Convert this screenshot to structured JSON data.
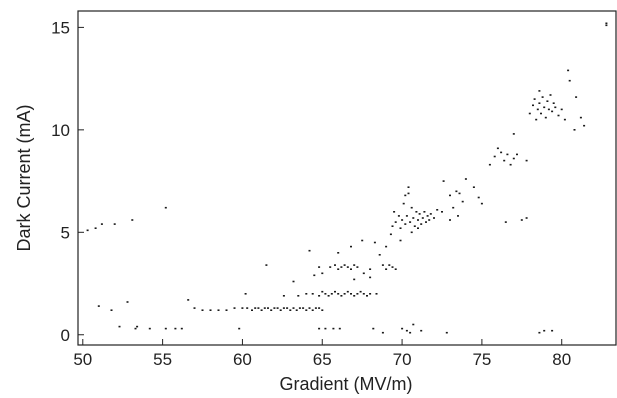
{
  "chart_data": {
    "type": "scatter",
    "xlabel": "Gradient (MV/m)",
    "ylabel": "Dark Current (mA)",
    "xlim": [
      49.7,
      83.4
    ],
    "ylim": [
      -0.5,
      15.8
    ],
    "x_ticks": [
      50,
      55,
      60,
      65,
      70,
      75,
      80
    ],
    "y_ticks": [
      0,
      5,
      10,
      15
    ],
    "grid": false,
    "legend": "none",
    "marker_color": "#1a1a1a",
    "series": [
      {
        "points": [
          [
            50.3,
            5.1
          ],
          [
            50.8,
            5.2
          ],
          [
            51.2,
            5.4
          ],
          [
            52.0,
            5.4
          ],
          [
            53.1,
            5.6
          ],
          [
            55.2,
            6.2
          ],
          [
            51.0,
            1.4
          ],
          [
            51.8,
            1.2
          ],
          [
            52.3,
            0.4
          ],
          [
            52.8,
            1.6
          ],
          [
            53.3,
            0.3
          ],
          [
            53.4,
            0.4
          ],
          [
            54.2,
            0.3
          ],
          [
            55.2,
            0.3
          ],
          [
            55.8,
            0.3
          ],
          [
            56.2,
            0.3
          ],
          [
            56.6,
            1.7
          ],
          [
            57.0,
            1.3
          ],
          [
            57.5,
            1.2
          ],
          [
            58.0,
            1.2
          ],
          [
            58.5,
            1.2
          ],
          [
            59.0,
            1.2
          ],
          [
            59.5,
            1.3
          ],
          [
            59.8,
            0.3
          ],
          [
            60.0,
            1.3
          ],
          [
            60.3,
            1.3
          ],
          [
            60.6,
            1.2
          ],
          [
            60.8,
            1.3
          ],
          [
            61.0,
            1.3
          ],
          [
            61.2,
            1.2
          ],
          [
            61.4,
            1.3
          ],
          [
            61.6,
            1.3
          ],
          [
            61.8,
            1.2
          ],
          [
            62.0,
            1.3
          ],
          [
            62.2,
            1.3
          ],
          [
            62.4,
            1.2
          ],
          [
            62.6,
            1.3
          ],
          [
            62.8,
            1.3
          ],
          [
            63.0,
            1.2
          ],
          [
            63.2,
            1.3
          ],
          [
            63.4,
            1.2
          ],
          [
            63.6,
            1.3
          ],
          [
            63.8,
            1.3
          ],
          [
            64.0,
            1.2
          ],
          [
            64.2,
            1.3
          ],
          [
            64.4,
            1.2
          ],
          [
            64.6,
            1.3
          ],
          [
            64.8,
            1.3
          ],
          [
            65.0,
            1.2
          ],
          [
            61.5,
            3.4
          ],
          [
            60.2,
            2.0
          ],
          [
            62.6,
            1.9
          ],
          [
            63.5,
            1.9
          ],
          [
            64.0,
            2.0
          ],
          [
            64.4,
            2.0
          ],
          [
            64.8,
            1.9
          ],
          [
            65.0,
            2.1
          ],
          [
            65.2,
            2.0
          ],
          [
            65.4,
            1.9
          ],
          [
            65.6,
            2.0
          ],
          [
            65.8,
            2.1
          ],
          [
            66.0,
            2.0
          ],
          [
            66.2,
            1.9
          ],
          [
            66.4,
            2.0
          ],
          [
            66.6,
            2.1
          ],
          [
            66.8,
            2.0
          ],
          [
            67.0,
            1.9
          ],
          [
            67.2,
            2.0
          ],
          [
            67.4,
            2.1
          ],
          [
            67.6,
            2.0
          ],
          [
            67.8,
            1.9
          ],
          [
            68.0,
            2.0
          ],
          [
            68.4,
            2.0
          ],
          [
            64.8,
            3.3
          ],
          [
            64.2,
            4.1
          ],
          [
            63.2,
            2.6
          ],
          [
            64.5,
            2.9
          ],
          [
            65.0,
            3.0
          ],
          [
            65.5,
            3.3
          ],
          [
            65.8,
            3.4
          ],
          [
            66.0,
            3.2
          ],
          [
            66.2,
            3.3
          ],
          [
            66.4,
            3.4
          ],
          [
            66.6,
            3.3
          ],
          [
            66.8,
            3.2
          ],
          [
            67.0,
            3.4
          ],
          [
            67.2,
            3.3
          ],
          [
            67.6,
            3.0
          ],
          [
            68.0,
            3.2
          ],
          [
            66.0,
            4.0
          ],
          [
            66.8,
            4.3
          ],
          [
            67.0,
            2.7
          ],
          [
            67.5,
            4.6
          ],
          [
            68.0,
            2.8
          ],
          [
            68.3,
            4.5
          ],
          [
            68.6,
            3.9
          ],
          [
            68.8,
            3.4
          ],
          [
            69.0,
            3.2
          ],
          [
            69.2,
            3.4
          ],
          [
            69.4,
            3.3
          ],
          [
            69.6,
            3.2
          ],
          [
            69.0,
            4.3
          ],
          [
            69.3,
            4.9
          ],
          [
            69.4,
            5.3
          ],
          [
            69.5,
            6.0
          ],
          [
            69.6,
            5.5
          ],
          [
            69.8,
            5.8
          ],
          [
            69.9,
            5.2
          ],
          [
            70.0,
            5.6
          ],
          [
            70.1,
            6.4
          ],
          [
            70.2,
            5.4
          ],
          [
            70.3,
            5.8
          ],
          [
            70.4,
            6.9
          ],
          [
            70.5,
            5.5
          ],
          [
            70.6,
            6.2
          ],
          [
            70.7,
            5.7
          ],
          [
            70.8,
            5.3
          ],
          [
            70.9,
            6.0
          ],
          [
            71.0,
            5.6
          ],
          [
            71.1,
            5.9
          ],
          [
            71.2,
            5.4
          ],
          [
            71.3,
            5.7
          ],
          [
            71.4,
            6.0
          ],
          [
            71.5,
            5.5
          ],
          [
            71.6,
            5.8
          ],
          [
            71.7,
            5.6
          ],
          [
            71.8,
            5.9
          ],
          [
            72.0,
            5.7
          ],
          [
            72.2,
            6.1
          ],
          [
            70.4,
            7.2
          ],
          [
            70.2,
            6.8
          ],
          [
            71.0,
            5.2
          ],
          [
            70.6,
            5.0
          ],
          [
            69.9,
            4.6
          ],
          [
            70.0,
            0.3
          ],
          [
            70.3,
            0.2
          ],
          [
            70.7,
            0.5
          ],
          [
            71.2,
            0.2
          ],
          [
            70.5,
            0.1
          ],
          [
            64.8,
            0.3
          ],
          [
            65.2,
            0.3
          ],
          [
            65.7,
            0.3
          ],
          [
            66.1,
            0.3
          ],
          [
            68.2,
            0.3
          ],
          [
            68.8,
            0.1
          ],
          [
            72.5,
            6.0
          ],
          [
            73.0,
            5.6
          ],
          [
            73.0,
            6.8
          ],
          [
            73.2,
            6.2
          ],
          [
            73.4,
            7.0
          ],
          [
            73.6,
            6.9
          ],
          [
            73.8,
            6.5
          ],
          [
            74.0,
            7.6
          ],
          [
            72.6,
            7.5
          ],
          [
            74.5,
            7.2
          ],
          [
            74.8,
            6.7
          ],
          [
            75.0,
            6.4
          ],
          [
            73.5,
            5.8
          ],
          [
            72.8,
            0.1
          ],
          [
            75.5,
            8.3
          ],
          [
            75.8,
            8.7
          ],
          [
            76.0,
            9.1
          ],
          [
            76.2,
            8.9
          ],
          [
            76.4,
            8.5
          ],
          [
            76.6,
            8.8
          ],
          [
            76.8,
            8.3
          ],
          [
            77.0,
            8.6
          ],
          [
            77.2,
            8.8
          ],
          [
            77.5,
            5.6
          ],
          [
            77.8,
            5.7
          ],
          [
            77.0,
            9.8
          ],
          [
            77.8,
            8.5
          ],
          [
            76.5,
            5.5
          ],
          [
            78.0,
            10.8
          ],
          [
            78.2,
            11.2
          ],
          [
            78.3,
            11.5
          ],
          [
            78.4,
            10.5
          ],
          [
            78.5,
            11.0
          ],
          [
            78.6,
            11.3
          ],
          [
            78.7,
            10.8
          ],
          [
            78.8,
            11.6
          ],
          [
            78.9,
            11.1
          ],
          [
            79.0,
            10.6
          ],
          [
            79.1,
            11.4
          ],
          [
            79.2,
            11.0
          ],
          [
            79.3,
            11.7
          ],
          [
            79.4,
            10.9
          ],
          [
            79.5,
            11.3
          ],
          [
            79.6,
            11.1
          ],
          [
            79.8,
            10.7
          ],
          [
            80.0,
            11.0
          ],
          [
            80.2,
            10.5
          ],
          [
            80.5,
            12.4
          ],
          [
            80.4,
            12.9
          ],
          [
            80.9,
            11.6
          ],
          [
            81.2,
            10.6
          ],
          [
            81.4,
            10.2
          ],
          [
            80.8,
            10.0
          ],
          [
            78.6,
            11.9
          ],
          [
            78.6,
            0.1
          ],
          [
            78.9,
            0.2
          ],
          [
            79.4,
            0.2
          ],
          [
            82.8,
            15.1
          ],
          [
            82.8,
            15.2
          ]
        ]
      }
    ]
  }
}
